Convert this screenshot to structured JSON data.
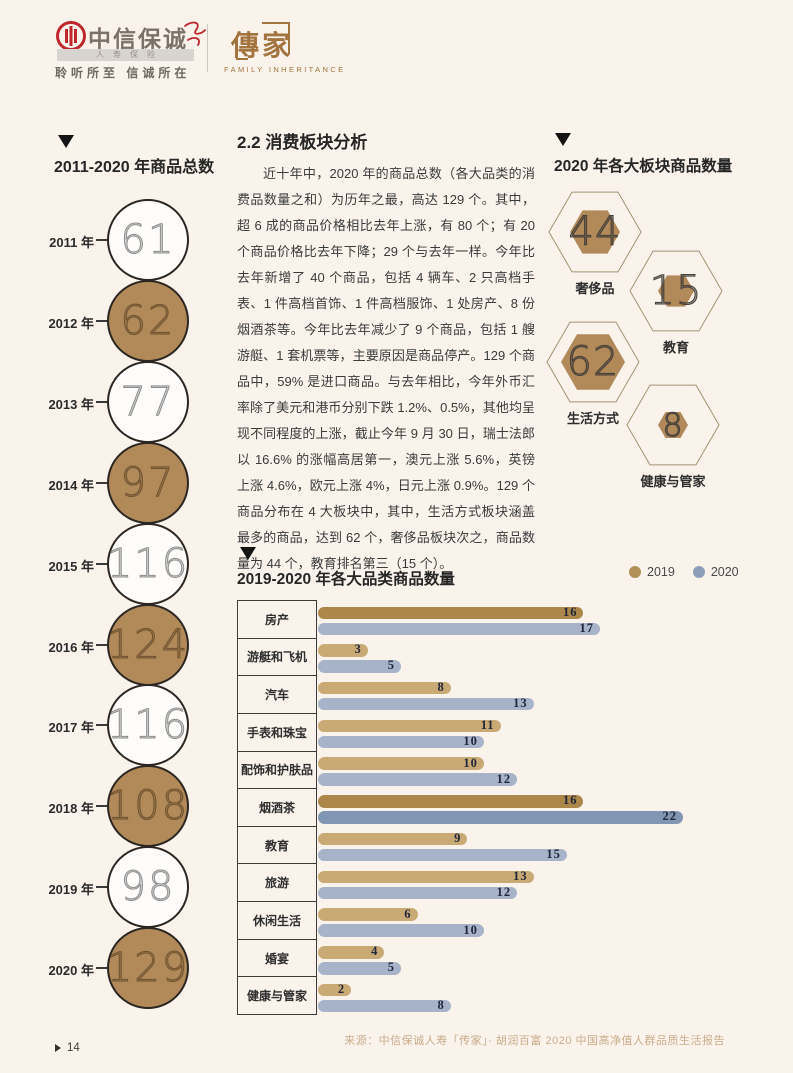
{
  "page": {
    "footer_page": "14"
  },
  "header": {
    "logo_cn": "中信保诚",
    "logo_sub": "人寿保险",
    "logo_slogan": "聆听所至  信诚所在",
    "brand_cn": "傳家",
    "brand_en": "FAMILY INHERITANCE"
  },
  "section": {
    "heading": "2.2 消费板块分析",
    "paragraph": "近十年中，2020 年的商品总数（各大品类的消费品数量之和）为历年之最，高达 129 个。其中，超 6 成的商品价格相比去年上涨，有 80 个；有 20 个商品价格比去年下降；29 个与去年一样。今年比去年新增了 40 个商品，包括 4 辆车、2 只高档手表、1 件高档首饰、1 件高档服饰、1 处房产、8 份烟酒茶等。今年比去年减少了 9 个商品，包括 1 艘游艇、1 套机票等，主要原因是商品停产。129 个商品中，59% 是进口商品。与去年相比，今年外币汇率除了美元和港币分别下跌 1.2%、0.5%，其他均呈现不同程度的上涨，截止今年 9 月 30 日，瑞士法郎以 16.6% 的涨幅高居第一，澳元上涨 5.6%，英镑上涨 4.6%，欧元上涨 4%，日元上涨 0.9%。129 个商品分布在 4 大板块中，其中，生活方式板块涵盖最多的商品，达到 62 个，奢侈品板块次之，商品数量为 44 个，教育排名第三（15 个）。"
  },
  "source": "来源：中信保诚人寿「传家」· 胡润百富 2020 中国高净值人群品质生活报告",
  "colors": {
    "circle_fill_brown": "#b28a5a",
    "hex_inner": "#b28a5a",
    "hex_outline": "#a59272",
    "bar_2019": "#c9aa74",
    "bar_2019_max": "#ad8749",
    "bar_2020": "#a6b3c9",
    "bar_2020_max": "#8096b2",
    "legend_2019": "#b29057",
    "legend_2020": "#8ba0b8",
    "logo_red": "#c0272d",
    "brand_gold": "#a3743f"
  },
  "chart_data": [
    {
      "type": "bar",
      "title": "2011-2020 年商品总数",
      "categories": [
        "2011 年",
        "2012 年",
        "2013 年",
        "2014 年",
        "2015 年",
        "2016 年",
        "2017 年",
        "2018 年",
        "2019 年",
        "2020 年"
      ],
      "values": [
        61,
        62,
        77,
        97,
        116,
        124,
        116,
        108,
        98,
        129
      ],
      "xlabel": "",
      "ylabel": "商品总数"
    },
    {
      "type": "bar",
      "title": "2020 年各大板块商品数量",
      "categories": [
        "奢侈品",
        "教育",
        "生活方式",
        "健康与管家"
      ],
      "values": [
        44,
        15,
        62,
        8
      ],
      "xlabel": "",
      "ylabel": "商品数量"
    },
    {
      "type": "bar",
      "title": "2019-2020 年各大品类商品数量",
      "categories": [
        "房产",
        "游艇和飞机",
        "汽车",
        "手表和珠宝",
        "配饰和护肤品",
        "烟酒茶",
        "教育",
        "旅游",
        "休闲生活",
        "婚宴",
        "健康与管家"
      ],
      "series": [
        {
          "name": "2019",
          "values": [
            16,
            3,
            8,
            11,
            10,
            16,
            9,
            13,
            6,
            4,
            2
          ]
        },
        {
          "name": "2020",
          "values": [
            17,
            5,
            13,
            10,
            12,
            22,
            15,
            12,
            10,
            5,
            8
          ]
        }
      ],
      "legend": [
        "2019",
        "2020"
      ],
      "xlim": [
        0,
        22
      ],
      "legend_position": "top-right"
    }
  ]
}
